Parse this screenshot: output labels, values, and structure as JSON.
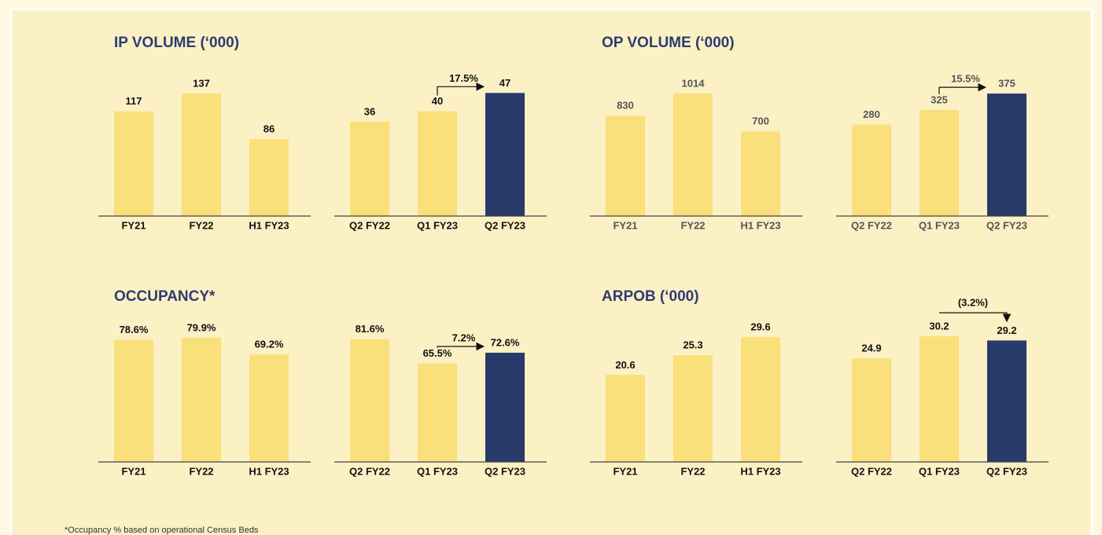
{
  "chart_data": [
    {
      "type": "bar",
      "title": "IP VOLUME (‘000)",
      "label_color": "#111111",
      "groups": [
        {
          "categories": [
            "FY21",
            "FY22",
            "H1 FY23"
          ],
          "values": [
            117,
            137,
            86
          ],
          "colors": [
            "#f9e07a",
            "#f9e07a",
            "#f9e07a"
          ],
          "ylim": [
            0,
            158
          ]
        },
        {
          "categories": [
            "Q2 FY22",
            "Q1 FY23",
            "Q2 FY23"
          ],
          "values": [
            36,
            40,
            47
          ],
          "colors": [
            "#f9e07a",
            "#f9e07a",
            "#273a69"
          ],
          "ylim": [
            0,
            54
          ],
          "growth_label": "17.5%"
        }
      ]
    },
    {
      "type": "bar",
      "title": "OP VOLUME (‘000)",
      "label_color": "#555555",
      "groups": [
        {
          "categories": [
            "FY21",
            "FY22",
            "H1 FY23"
          ],
          "values": [
            830,
            1014,
            700
          ],
          "colors": [
            "#f9e07a",
            "#f9e07a",
            "#f9e07a"
          ],
          "ylim": [
            0,
            1170
          ]
        },
        {
          "categories": [
            "Q2 FY22",
            "Q1 FY23",
            "Q2 FY23"
          ],
          "values": [
            280,
            325,
            375
          ],
          "colors": [
            "#f9e07a",
            "#f9e07a",
            "#273a69"
          ],
          "ylim": [
            0,
            433
          ],
          "growth_label": "15.5%"
        }
      ]
    },
    {
      "type": "bar",
      "title": "OCCUPANCY*",
      "label_color": "#111111",
      "groups": [
        {
          "categories": [
            "FY21",
            "FY22",
            "H1 FY23"
          ],
          "values": [
            78.6,
            79.9,
            69.2
          ],
          "value_labels": [
            "78.6%",
            "79.9%",
            "69.2%"
          ],
          "colors": [
            "#f9e07a",
            "#f9e07a",
            "#f9e07a"
          ],
          "ylim": [
            0,
            91
          ]
        },
        {
          "categories": [
            "Q2 FY22",
            "Q1 FY23",
            "Q2 FY23"
          ],
          "values": [
            81.6,
            65.5,
            72.6
          ],
          "value_labels": [
            "81.6%",
            "65.5%",
            "72.6%"
          ],
          "colors": [
            "#f9e07a",
            "#f9e07a",
            "#273a69"
          ],
          "ylim": [
            0,
            94
          ],
          "growth_label": "7.2%"
        }
      ]
    },
    {
      "type": "bar",
      "title": "ARPOB (‘000)",
      "label_color": "#111111",
      "groups": [
        {
          "categories": [
            "FY21",
            "FY22",
            "H1 FY23"
          ],
          "values": [
            20.6,
            25.3,
            29.6
          ],
          "colors": [
            "#f9e07a",
            "#f9e07a",
            "#f9e07a"
          ],
          "ylim": [
            0,
            33.5
          ]
        },
        {
          "categories": [
            "Q2 FY22",
            "Q1 FY23",
            "Q2 FY23"
          ],
          "values": [
            24.9,
            30.2,
            29.2
          ],
          "colors": [
            "#f9e07a",
            "#f9e07a",
            "#273a69"
          ],
          "ylim": [
            0,
            34
          ],
          "growth_label": "(3.2%)"
        }
      ]
    }
  ],
  "footnote": "*Occupancy % based on operational Census Beds"
}
